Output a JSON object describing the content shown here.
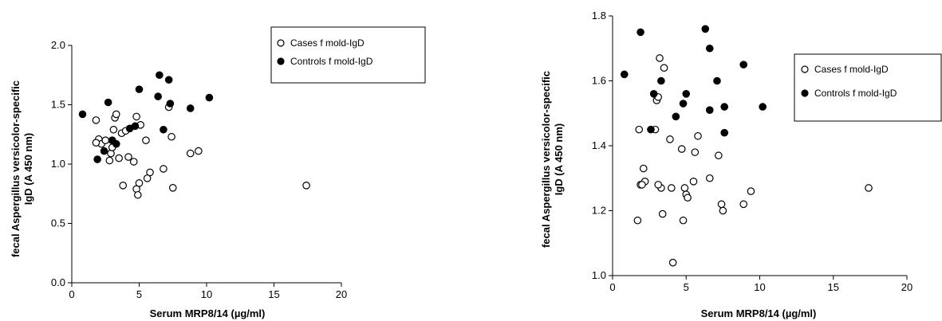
{
  "chart_data": [
    {
      "type": "scatter",
      "title": "",
      "xlabel": "Serum MRP8/14 (µg/ml)",
      "ylabel_line1": "fecal Aspergillus versicolor-specific",
      "ylabel_line2": "IgD (A 450 nm)",
      "xlim": [
        0,
        20
      ],
      "ylim": [
        0,
        2.0
      ],
      "xticks": [
        0,
        5,
        10,
        15,
        20
      ],
      "yticks": [
        0,
        0.5,
        1.0,
        1.5,
        2.0
      ],
      "xtick_labels": [
        "0",
        "5",
        "10",
        "15",
        "20"
      ],
      "ytick_labels": [
        "0.0",
        "0.5",
        "1.0",
        "1.5",
        "2.0"
      ],
      "grid": false,
      "legend_position": "top-right",
      "series": [
        {
          "name": "Cases f mold-IgD",
          "marker": "open-circle",
          "x": [
            1.8,
            2.0,
            2.2,
            2.8,
            2.9,
            3.0,
            3.1,
            3.2,
            3.3,
            3.5,
            3.7,
            3.8,
            4.2,
            4.6,
            4.8,
            4.9,
            5.0,
            5.1,
            5.5,
            5.8,
            6.8,
            7.2,
            7.4,
            7.5,
            8.8,
            9.4,
            17.4,
            4.0,
            4.8,
            1.8,
            3.0,
            5.6,
            2.5
          ],
          "y": [
            1.37,
            1.21,
            1.17,
            1.03,
            1.09,
            1.2,
            1.29,
            1.39,
            1.42,
            1.05,
            1.26,
            0.82,
            1.06,
            1.02,
            0.79,
            0.74,
            0.84,
            1.33,
            1.2,
            0.93,
            0.96,
            1.48,
            1.23,
            0.8,
            1.09,
            1.11,
            0.82,
            1.28,
            1.4,
            1.18,
            1.14,
            0.88,
            1.2
          ]
        },
        {
          "name": "Controls f mold-IgD",
          "marker": "filled-circle",
          "x": [
            0.8,
            1.9,
            2.4,
            2.7,
            3.0,
            3.3,
            4.3,
            4.7,
            5.0,
            6.4,
            6.5,
            6.8,
            7.2,
            7.3,
            8.8,
            10.2
          ],
          "y": [
            1.42,
            1.04,
            1.11,
            1.52,
            1.2,
            1.17,
            1.3,
            1.32,
            1.63,
            1.57,
            1.75,
            1.29,
            1.71,
            1.51,
            1.47,
            1.56
          ]
        }
      ]
    },
    {
      "type": "scatter",
      "title": "",
      "xlabel": "Serum MRP8/14 (µg/ml)",
      "ylabel_line1": "fecal Aspergillus versicolor-specific",
      "ylabel_line2": "IgD (A 450 nm)",
      "xlim": [
        0,
        20
      ],
      "ylim": [
        1.0,
        1.8
      ],
      "xticks": [
        0,
        5,
        10,
        15,
        20
      ],
      "yticks": [
        1.0,
        1.2,
        1.4,
        1.6,
        1.8
      ],
      "xtick_labels": [
        "0",
        "5",
        "10",
        "15",
        "20"
      ],
      "ytick_labels": [
        "1.0",
        "1.2",
        "1.4",
        "1.6",
        "1.8"
      ],
      "grid": false,
      "legend_position": "right",
      "series": [
        {
          "name": "Cases f mold-IgD",
          "marker": "open-circle",
          "x": [
            1.7,
            1.8,
            1.9,
            2.1,
            2.2,
            2.9,
            3.0,
            3.1,
            3.2,
            3.3,
            3.4,
            3.5,
            3.9,
            4.0,
            4.1,
            4.7,
            4.8,
            5.0,
            5.1,
            5.5,
            5.8,
            6.6,
            7.2,
            7.4,
            7.5,
            8.9,
            9.4,
            17.4,
            4.9,
            5.6,
            2.0,
            3.1
          ],
          "y": [
            1.17,
            1.45,
            1.28,
            1.33,
            1.29,
            1.45,
            1.54,
            1.55,
            1.67,
            1.27,
            1.19,
            1.64,
            1.42,
            1.27,
            1.04,
            1.39,
            1.17,
            1.25,
            1.24,
            1.29,
            1.43,
            1.3,
            1.37,
            1.22,
            1.2,
            1.22,
            1.26,
            1.27,
            1.27,
            1.38,
            1.28,
            1.28
          ]
        },
        {
          "name": "Controls f mold-IgD",
          "marker": "filled-circle",
          "x": [
            0.8,
            1.9,
            2.6,
            2.8,
            3.3,
            4.3,
            4.8,
            5.0,
            6.3,
            6.6,
            6.6,
            7.1,
            7.6,
            7.6,
            8.9,
            10.2
          ],
          "y": [
            1.62,
            1.75,
            1.45,
            1.56,
            1.6,
            1.49,
            1.53,
            1.56,
            1.76,
            1.7,
            1.51,
            1.6,
            1.52,
            1.44,
            1.65,
            1.52
          ]
        }
      ]
    }
  ]
}
